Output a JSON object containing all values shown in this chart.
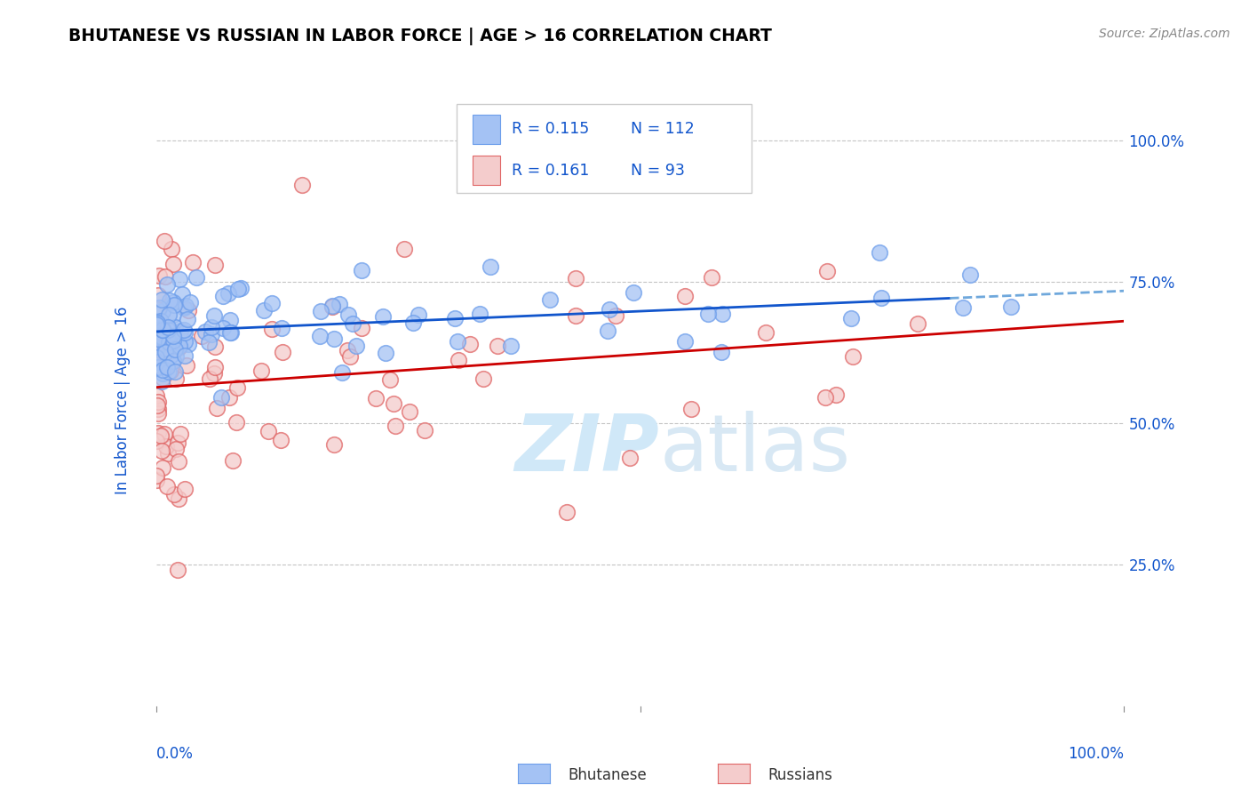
{
  "title": "BHUTANESE VS RUSSIAN IN LABOR FORCE | AGE > 16 CORRELATION CHART",
  "source_text": "Source: ZipAtlas.com",
  "ylabel": "In Labor Force | Age > 16",
  "xlim": [
    0.0,
    1.0
  ],
  "ylim": [
    0.0,
    1.08
  ],
  "x_ticks": [
    0.0,
    1.0
  ],
  "x_tick_labels": [
    "0.0%",
    "100.0%"
  ],
  "y_ticks": [
    0.25,
    0.5,
    0.75,
    1.0
  ],
  "y_tick_labels": [
    "25.0%",
    "50.0%",
    "75.0%",
    "100.0%"
  ],
  "blue_color": "#a4c2f4",
  "pink_color": "#f4cccc",
  "blue_edge_color": "#6d9eeb",
  "pink_edge_color": "#e06666",
  "blue_line_color": "#1155cc",
  "pink_line_color": "#cc0000",
  "dashed_line_color": "#6fa8dc",
  "r_blue": 0.115,
  "n_blue": 112,
  "r_pink": 0.161,
  "n_pink": 93,
  "legend_text_color": "#1155cc",
  "axis_label_color": "#1155cc",
  "title_color": "#000000",
  "background_color": "#ffffff",
  "grid_color": "#b7b7b7",
  "watermark_color": "#d0e8f8",
  "blue_line_solid_end": 0.82
}
